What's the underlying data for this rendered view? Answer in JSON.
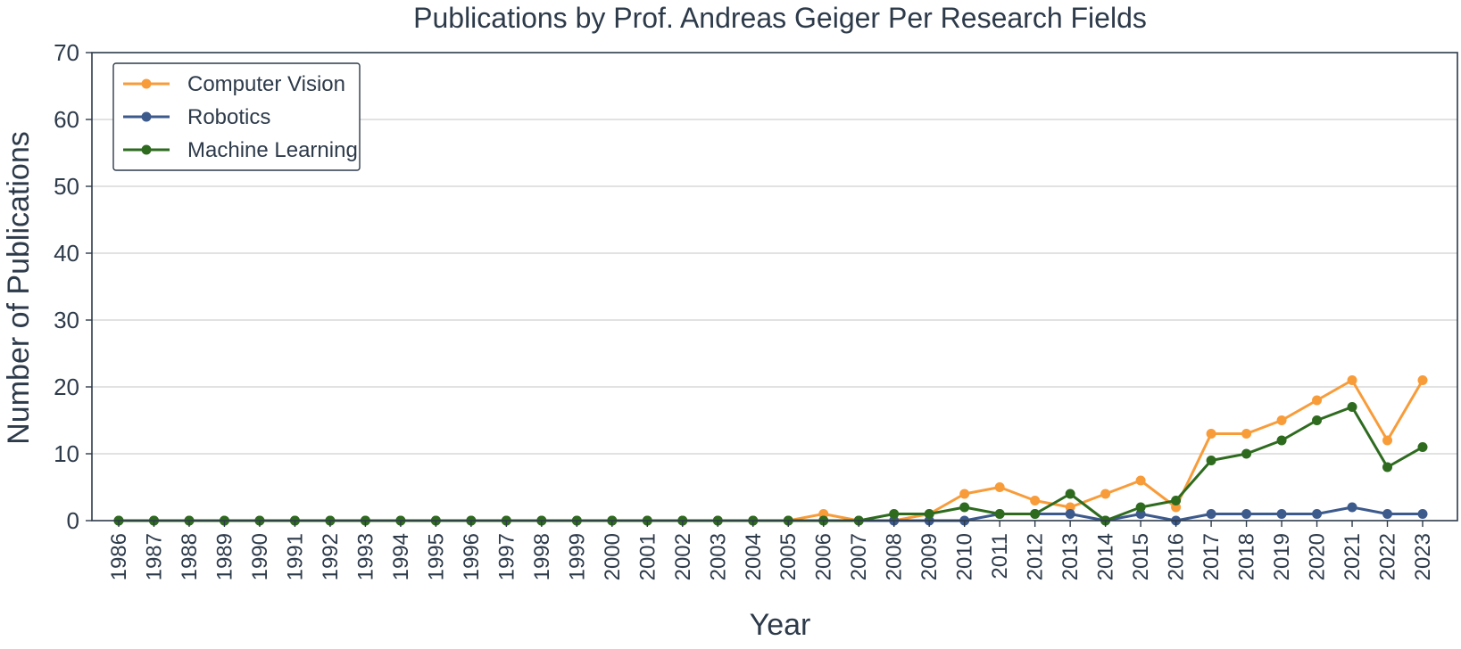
{
  "chart_data": {
    "type": "line",
    "title": "Publications by Prof. Andreas Geiger Per Research Fields",
    "xlabel": "Year",
    "ylabel": "Number of Publications",
    "ylim": [
      0,
      70
    ],
    "yticks": [
      0,
      10,
      20,
      30,
      40,
      50,
      60,
      70
    ],
    "grid": "horizontal",
    "legend_position": "top-left",
    "x": [
      1986,
      1987,
      1988,
      1989,
      1990,
      1991,
      1992,
      1993,
      1994,
      1995,
      1996,
      1997,
      1998,
      1999,
      2000,
      2001,
      2002,
      2003,
      2004,
      2005,
      2006,
      2007,
      2008,
      2009,
      2010,
      2011,
      2012,
      2013,
      2014,
      2015,
      2016,
      2017,
      2018,
      2019,
      2020,
      2021,
      2022,
      2023
    ],
    "series": [
      {
        "name": "Computer Vision",
        "color": "#f89c3a",
        "values": [
          0,
          0,
          0,
          0,
          0,
          0,
          0,
          0,
          0,
          0,
          0,
          0,
          0,
          0,
          0,
          0,
          0,
          0,
          0,
          0,
          1,
          0,
          0,
          1,
          4,
          5,
          3,
          2,
          4,
          6,
          2,
          13,
          13,
          15,
          18,
          21,
          12,
          21
        ]
      },
      {
        "name": "Robotics",
        "color": "#3d5a8c",
        "values": [
          0,
          0,
          0,
          0,
          0,
          0,
          0,
          0,
          0,
          0,
          0,
          0,
          0,
          0,
          0,
          0,
          0,
          0,
          0,
          0,
          0,
          0,
          0,
          0,
          0,
          1,
          1,
          1,
          0,
          1,
          0,
          1,
          1,
          1,
          1,
          2,
          1,
          1
        ]
      },
      {
        "name": "Machine Learning",
        "color": "#2e6b1f",
        "values": [
          0,
          0,
          0,
          0,
          0,
          0,
          0,
          0,
          0,
          0,
          0,
          0,
          0,
          0,
          0,
          0,
          0,
          0,
          0,
          0,
          0,
          0,
          1,
          1,
          2,
          1,
          1,
          4,
          0,
          2,
          3,
          9,
          10,
          12,
          15,
          17,
          8,
          11
        ]
      }
    ]
  }
}
